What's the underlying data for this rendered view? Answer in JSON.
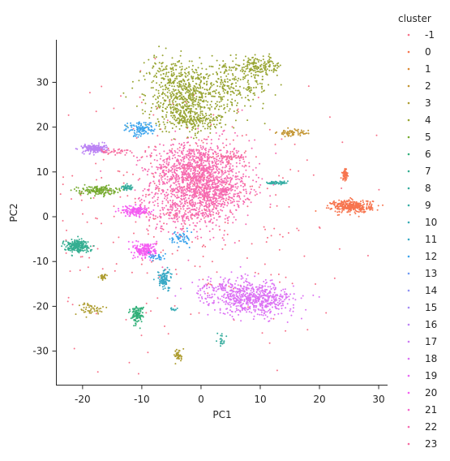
{
  "chart_data": {
    "type": "scatter",
    "xlabel": "PC1",
    "ylabel": "PC2",
    "xlim": [
      -24.5,
      31.5
    ],
    "ylim": [
      -37.5,
      39.5
    ],
    "xticks": [
      "-20",
      "-10",
      "0",
      "10",
      "20",
      "30"
    ],
    "yticks": [
      "-30",
      "-20",
      "-10",
      "0",
      "10",
      "20",
      "30"
    ],
    "grid": false,
    "legend": {
      "title": "cluster",
      "placement": "outside-right",
      "labels": [
        "-1",
        "0",
        "1",
        "2",
        "3",
        "4",
        "5",
        "6",
        "7",
        "8",
        "9",
        "10",
        "11",
        "12",
        "13",
        "14",
        "15",
        "16",
        "17",
        "18",
        "19",
        "20",
        "21",
        "22",
        "23"
      ],
      "colors": [
        "#f77189",
        "#f7754f",
        "#dc8932",
        "#c39532",
        "#ae9d31",
        "#97a431",
        "#77ab31",
        "#33b07a",
        "#34ae91",
        "#35ac9d",
        "#36ada4",
        "#37abb4",
        "#38a9c5",
        "#3ba3ec",
        "#6e9af4",
        "#8e92f4",
        "#a48cf4",
        "#bb83f4",
        "#cc7af4",
        "#dc72f4",
        "#e866f4",
        "#f45cf2",
        "#f565cc",
        "#f66bb0",
        "#f66ba0"
      ]
    },
    "series": [
      {
        "color": "#f66bb0",
        "clusters": [
          {
            "x": 0,
            "y": 8,
            "sx": 4.2,
            "sy": 4.6,
            "n": 900
          },
          {
            "x": -1.5,
            "y": 11,
            "sx": 3,
            "sy": 2.4,
            "n": 420
          },
          {
            "x": 2.5,
            "y": 5.5,
            "sx": 2.6,
            "sy": 1.8,
            "n": 300
          },
          {
            "x": -3,
            "y": 1.5,
            "sx": 3.5,
            "sy": 2.5,
            "n": 260
          }
        ]
      },
      {
        "color": "#f77189",
        "clusters": [
          {
            "x": -2,
            "y": 2,
            "sx": 13,
            "sy": 14,
            "n": 340
          }
        ]
      },
      {
        "color": "#97a431",
        "clusters": [
          {
            "x": -2.5,
            "y": 26,
            "sx": 3.3,
            "sy": 3.4,
            "n": 560
          },
          {
            "x": 4.5,
            "y": 29,
            "sx": 3.8,
            "sy": 2.4,
            "n": 240
          },
          {
            "x": 9.5,
            "y": 33.5,
            "sx": 2.3,
            "sy": 1.1,
            "n": 160
          },
          {
            "x": -5.5,
            "y": 32,
            "sx": 1.8,
            "sy": 2,
            "n": 120
          },
          {
            "x": -1,
            "y": 21.5,
            "sx": 2.5,
            "sy": 0.8,
            "n": 140
          }
        ]
      },
      {
        "color": "#f7754f",
        "clusters": [
          {
            "x": 25.5,
            "y": 2.3,
            "sx": 1.7,
            "sy": 0.7,
            "n": 330
          }
        ]
      },
      {
        "color": "#f7754f",
        "clusters": [
          {
            "x": 24.3,
            "y": 9.4,
            "sx": 0.25,
            "sy": 0.6,
            "n": 60
          }
        ]
      },
      {
        "color": "#c39532",
        "clusters": [
          {
            "x": 15.5,
            "y": 18.7,
            "sx": 1.3,
            "sy": 0.4,
            "n": 60
          }
        ]
      },
      {
        "color": "#dc72f4",
        "clusters": [
          {
            "x": 9.5,
            "y": -18.5,
            "sx": 3.2,
            "sy": 1.7,
            "n": 520
          },
          {
            "x": 4.5,
            "y": -16.5,
            "sx": 3,
            "sy": 1.6,
            "n": 200
          }
        ]
      },
      {
        "color": "#bb83f4",
        "clusters": [
          {
            "x": -18,
            "y": 15.2,
            "sx": 1,
            "sy": 0.5,
            "n": 170
          }
        ]
      },
      {
        "color": "#f45cf2",
        "clusters": [
          {
            "x": -9.3,
            "y": -7.5,
            "sx": 0.9,
            "sy": 0.9,
            "n": 190
          },
          {
            "x": -11,
            "y": 1.3,
            "sx": 1.2,
            "sy": 0.6,
            "n": 140
          }
        ]
      },
      {
        "color": "#77ab31",
        "clusters": [
          {
            "x": -17.5,
            "y": 5.9,
            "sx": 1.6,
            "sy": 0.5,
            "n": 160
          }
        ]
      },
      {
        "color": "#34ae91",
        "clusters": [
          {
            "x": -21,
            "y": -6.5,
            "sx": 1.1,
            "sy": 0.7,
            "n": 220
          }
        ]
      },
      {
        "color": "#33b07a",
        "clusters": [
          {
            "x": -10.8,
            "y": -21.8,
            "sx": 0.5,
            "sy": 0.9,
            "n": 120
          }
        ]
      },
      {
        "color": "#38a9c5",
        "clusters": [
          {
            "x": -6.2,
            "y": -13.8,
            "sx": 0.6,
            "sy": 1.2,
            "n": 100
          }
        ]
      },
      {
        "color": "#3ba3ec",
        "clusters": [
          {
            "x": -10.2,
            "y": 19.5,
            "sx": 1.3,
            "sy": 0.8,
            "n": 110
          },
          {
            "x": -3.5,
            "y": -5,
            "sx": 0.8,
            "sy": 1,
            "n": 50
          },
          {
            "x": -7.5,
            "y": -9,
            "sx": 0.9,
            "sy": 0.4,
            "n": 25
          }
        ]
      },
      {
        "color": "#36ada4",
        "clusters": [
          {
            "x": 13,
            "y": 7.6,
            "sx": 0.9,
            "sy": 0.2,
            "n": 60
          }
        ]
      },
      {
        "color": "#ae9d31",
        "clusters": [
          {
            "x": -3.8,
            "y": -31,
            "sx": 0.35,
            "sy": 0.7,
            "n": 40
          },
          {
            "x": -18.5,
            "y": -20.5,
            "sx": 1.2,
            "sy": 0.7,
            "n": 50
          },
          {
            "x": -16.5,
            "y": -13.5,
            "sx": 0.4,
            "sy": 0.4,
            "n": 25
          }
        ]
      },
      {
        "color": "#35ac9d",
        "clusters": [
          {
            "x": -12.5,
            "y": 6.5,
            "sx": 0.5,
            "sy": 0.3,
            "n": 40
          },
          {
            "x": 3.5,
            "y": -27.5,
            "sx": 0.3,
            "sy": 0.8,
            "n": 20
          }
        ]
      },
      {
        "color": "#37abb4",
        "clusters": [
          {
            "x": -4.5,
            "y": -20.8,
            "sx": 0.3,
            "sy": 0.2,
            "n": 12
          }
        ]
      },
      {
        "color": "#f66ba0",
        "clusters": [
          {
            "x": 5.5,
            "y": 13.3,
            "sx": 1.3,
            "sy": 0.2,
            "n": 40
          },
          {
            "x": -14.5,
            "y": 14.5,
            "sx": 1.6,
            "sy": 0.4,
            "n": 40
          }
        ]
      }
    ]
  }
}
